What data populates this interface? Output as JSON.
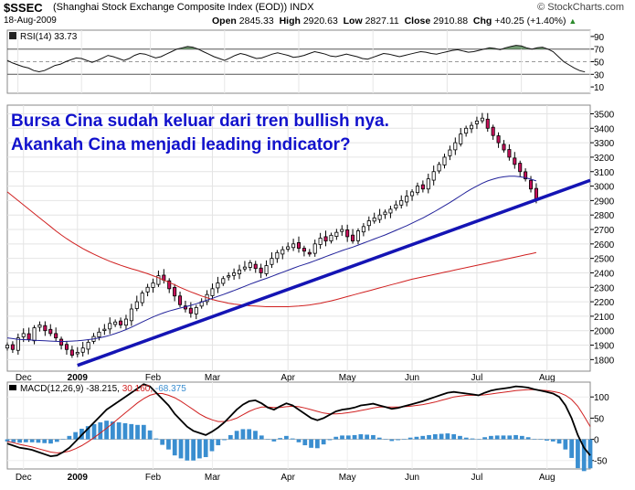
{
  "header": {
    "symbol": "$SSEC",
    "name": "(Shanghai Stock Exchange Composite Index (EOD))",
    "exchange": "INDX",
    "date": "18-Aug-2009",
    "open_label": "Open",
    "open": "2845.33",
    "high_label": "High",
    "high": "2920.63",
    "low_label": "Low",
    "low": "2827.11",
    "close_label": "Close",
    "close": "2910.88",
    "chg_label": "Chg",
    "chg": "+40.25 (+1.40%)",
    "chg_icon": "triangle-up-icon",
    "source": "© StockCharts.com"
  },
  "annotation": {
    "line1": "Bursa Cina sudah keluar dari tren bullish nya.",
    "line2": "Akankah Cina menjadi leading indicator?"
  },
  "colors": {
    "up_candle": "#ffffff",
    "down_candle": "#c8105a",
    "ma_short": "#22229a",
    "ma_long": "#d02020",
    "trendline": "#1414b4",
    "annotation": "#1212cc",
    "rsi_fill": "#5c8c5c",
    "macd_hist": "#3a8ed0"
  },
  "chart_data": [
    {
      "type": "line",
      "panel": "rsi",
      "label": "RSI(14)",
      "value": "33.73",
      "ylim": [
        0,
        100
      ],
      "ticks": [
        "90",
        "70",
        "50",
        "30",
        "10"
      ],
      "tick_values": [
        90,
        70,
        50,
        30,
        10
      ],
      "levels": [
        70,
        50,
        30
      ],
      "series": [
        {
          "values": [
            52,
            48,
            45,
            42,
            40,
            36,
            34,
            36,
            40,
            44,
            46,
            50,
            53,
            56,
            55,
            52,
            49,
            52,
            56,
            60,
            58,
            55,
            52,
            55,
            60,
            63,
            62,
            59,
            56,
            58,
            62,
            66,
            70,
            72,
            74,
            73,
            70,
            66,
            62,
            58,
            55,
            52,
            56,
            60,
            63,
            61,
            58,
            55,
            56,
            59,
            62,
            64,
            62,
            60,
            57,
            58,
            60,
            63,
            66,
            64,
            62,
            59,
            58,
            60,
            62,
            60,
            58,
            55,
            54,
            57,
            60,
            63,
            62,
            60,
            58,
            60,
            62,
            64,
            66,
            65,
            63,
            62,
            64,
            66,
            68,
            69,
            67,
            65,
            66,
            68,
            70,
            72,
            71,
            69,
            72,
            74,
            76,
            75,
            72,
            70,
            72,
            73,
            70,
            66,
            58,
            50,
            45,
            40,
            36,
            33.7
          ]
        }
      ],
      "x_range": [
        0,
        110
      ],
      "date_ticks": [
        {
          "label": "Dec",
          "x": 2
        },
        {
          "label": "2009",
          "x": 14
        },
        {
          "label": "Feb",
          "x": 27
        },
        {
          "label": "Mar",
          "x": 41
        },
        {
          "label": "Apr",
          "x": 55
        },
        {
          "label": "May",
          "x": 69
        },
        {
          "label": "Jun",
          "x": 83
        },
        {
          "label": "Jul",
          "x": 97
        },
        {
          "label": "Aug",
          "x": 110
        }
      ]
    },
    {
      "type": "candlestick",
      "panel": "price",
      "ylim": [
        1720,
        3560
      ],
      "ticks": [
        "3500",
        "3400",
        "3300",
        "3200",
        "3100",
        "3000",
        "2900",
        "2800",
        "2700",
        "2600",
        "2500",
        "2400",
        "2300",
        "2200",
        "2100",
        "2000",
        "1900",
        "1800"
      ],
      "tick_values": [
        3500,
        3400,
        3300,
        3200,
        3100,
        3000,
        2900,
        2800,
        2700,
        2600,
        2500,
        2400,
        2300,
        2200,
        2100,
        2000,
        1900,
        1800
      ],
      "x_ticks": [
        {
          "label": "Dec",
          "x": 3
        },
        {
          "label": "2009",
          "x": 13
        },
        {
          "label": "Feb",
          "x": 27
        },
        {
          "label": "Mar",
          "x": 38
        },
        {
          "label": "Apr",
          "x": 52
        },
        {
          "label": "May",
          "x": 63
        },
        {
          "label": "Jun",
          "x": 75
        },
        {
          "label": "Jul",
          "x": 87
        },
        {
          "label": "Aug",
          "x": 100
        }
      ],
      "x_range": [
        0,
        108
      ],
      "closes": [
        1900,
        1870,
        1950,
        1980,
        1940,
        2020,
        2040,
        2000,
        1980,
        1950,
        1900,
        1870,
        1830,
        1850,
        1880,
        1920,
        1960,
        1990,
        2010,
        2050,
        2060,
        2040,
        2080,
        2150,
        2200,
        2260,
        2300,
        2330,
        2380,
        2350,
        2290,
        2240,
        2180,
        2150,
        2120,
        2160,
        2200,
        2250,
        2290,
        2330,
        2360,
        2380,
        2400,
        2420,
        2440,
        2470,
        2430,
        2400,
        2450,
        2500,
        2540,
        2560,
        2580,
        2600,
        2570,
        2550,
        2530,
        2600,
        2640,
        2620,
        2660,
        2680,
        2700,
        2650,
        2620,
        2690,
        2720,
        2760,
        2780,
        2800,
        2820,
        2840,
        2870,
        2900,
        2930,
        2960,
        3000,
        2980,
        3050,
        3100,
        3150,
        3200,
        3250,
        3300,
        3360,
        3400,
        3420,
        3450,
        3470,
        3400,
        3350,
        3300,
        3250,
        3200,
        3150,
        3100,
        3050,
        2980,
        2911
      ],
      "ma50": [
        1950,
        1945,
        1940,
        1938,
        1936,
        1934,
        1932,
        1930,
        1928,
        1926,
        1925,
        1926,
        1928,
        1930,
        1934,
        1938,
        1943,
        1950,
        1958,
        1968,
        1980,
        1993,
        2008,
        2024,
        2042,
        2060,
        2078,
        2095,
        2110,
        2124,
        2136,
        2146,
        2156,
        2165,
        2175,
        2186,
        2198,
        2211,
        2224,
        2237,
        2250,
        2264,
        2278,
        2292,
        2307,
        2322,
        2336,
        2349,
        2362,
        2376,
        2390,
        2404,
        2418,
        2432,
        2446,
        2458,
        2470,
        2484,
        2498,
        2512,
        2526,
        2540,
        2554,
        2566,
        2578,
        2592,
        2606,
        2620,
        2634,
        2648,
        2662,
        2678,
        2694,
        2710,
        2726,
        2744,
        2762,
        2780,
        2800,
        2820,
        2842,
        2864,
        2886,
        2910,
        2934,
        2958,
        2980,
        3000,
        3020,
        3036,
        3048,
        3058,
        3064,
        3068,
        3068,
        3064,
        3058,
        3048,
        3036
      ],
      "ma200": [
        2960,
        2930,
        2900,
        2870,
        2840,
        2810,
        2780,
        2750,
        2720,
        2690,
        2662,
        2636,
        2612,
        2590,
        2568,
        2548,
        2530,
        2512,
        2496,
        2480,
        2466,
        2452,
        2440,
        2428,
        2418,
        2406,
        2394,
        2380,
        2366,
        2350,
        2334,
        2318,
        2300,
        2284,
        2268,
        2254,
        2240,
        2228,
        2216,
        2206,
        2198,
        2190,
        2184,
        2180,
        2176,
        2172,
        2170,
        2168,
        2166,
        2166,
        2166,
        2166,
        2166,
        2168,
        2170,
        2174,
        2178,
        2184,
        2190,
        2198,
        2206,
        2216,
        2226,
        2236,
        2246,
        2256,
        2266,
        2276,
        2286,
        2296,
        2306,
        2316,
        2326,
        2336,
        2346,
        2356,
        2364,
        2372,
        2380,
        2388,
        2396,
        2404,
        2412,
        2420,
        2428,
        2436,
        2444,
        2452,
        2460,
        2468,
        2476,
        2484,
        2492,
        2500,
        2508,
        2516,
        2524,
        2532,
        2540
      ],
      "trendline": [
        [
          13,
          1760
        ],
        [
          108,
          3040
        ]
      ]
    },
    {
      "type": "line",
      "panel": "macd",
      "label": "MACD(12,26,9)",
      "values_text": [
        "-38.215",
        "30.160",
        "-68.375"
      ],
      "ylim": [
        -70,
        135
      ],
      "ticks": [
        "100",
        "50",
        "0",
        "-50"
      ],
      "tick_values": [
        100,
        50,
        0,
        -50
      ],
      "series": [
        {
          "values": [
            -10,
            -15,
            -20,
            -22,
            -25,
            -30,
            -35,
            -40,
            -38,
            -30,
            -20,
            -5,
            10,
            25,
            40,
            55,
            70,
            80,
            90,
            100,
            110,
            120,
            130,
            125,
            110,
            95,
            80,
            60,
            45,
            30,
            20,
            15,
            10,
            18,
            28,
            40,
            55,
            70,
            82,
            90,
            92,
            85,
            75,
            70,
            78,
            85,
            80,
            70,
            60,
            50,
            45,
            50,
            58,
            66,
            70,
            72,
            75,
            80,
            82,
            84,
            80,
            76,
            72,
            74,
            78,
            82,
            86,
            90,
            95,
            100,
            105,
            110,
            112,
            110,
            108,
            106,
            104,
            110,
            115,
            118,
            120,
            122,
            125,
            124,
            122,
            118,
            115,
            112,
            108,
            100,
            80,
            50,
            10,
            -20,
            -38
          ]
        },
        {
          "values": [
            -5,
            -8,
            -12,
            -15,
            -18,
            -22,
            -26,
            -30,
            -32,
            -31,
            -28,
            -22,
            -15,
            -6,
            4,
            15,
            26,
            38,
            50,
            62,
            74,
            86,
            96,
            104,
            108,
            108,
            104,
            98,
            90,
            80,
            70,
            60,
            52,
            46,
            42,
            42,
            45,
            50,
            58,
            66,
            72,
            76,
            76,
            75,
            75,
            77,
            78,
            77,
            74,
            70,
            66,
            62,
            60,
            60,
            61,
            63,
            65,
            68,
            71,
            74,
            76,
            76,
            76,
            76,
            77,
            78,
            80,
            82,
            85,
            88,
            92,
            96,
            100,
            102,
            104,
            104,
            104,
            105,
            107,
            109,
            111,
            113,
            115,
            116,
            117,
            117,
            116,
            115,
            113,
            110,
            104,
            94,
            78,
            55,
            30.16
          ]
        }
      ],
      "histogram": [
        -5,
        -7,
        -8,
        -7,
        -7,
        -8,
        -9,
        -10,
        -6,
        1,
        8,
        17,
        25,
        31,
        36,
        40,
        44,
        42,
        40,
        38,
        36,
        34,
        34,
        21,
        2,
        -13,
        -24,
        -38,
        -45,
        -50,
        -50,
        -45,
        -42,
        -28,
        -14,
        -2,
        10,
        20,
        24,
        24,
        20,
        9,
        -1,
        -5,
        3,
        8,
        2,
        -7,
        -14,
        -20,
        -21,
        -12,
        -2,
        6,
        9,
        9,
        10,
        12,
        11,
        10,
        4,
        0,
        -4,
        -2,
        1,
        4,
        6,
        8,
        10,
        12,
        13,
        14,
        12,
        8,
        4,
        2,
        0,
        5,
        8,
        9,
        9,
        9,
        10,
        8,
        5,
        1,
        -1,
        -3,
        -5,
        -10,
        -24,
        -44,
        -68,
        -75,
        -68.375
      ],
      "x_range": [
        0,
        94
      ]
    }
  ]
}
